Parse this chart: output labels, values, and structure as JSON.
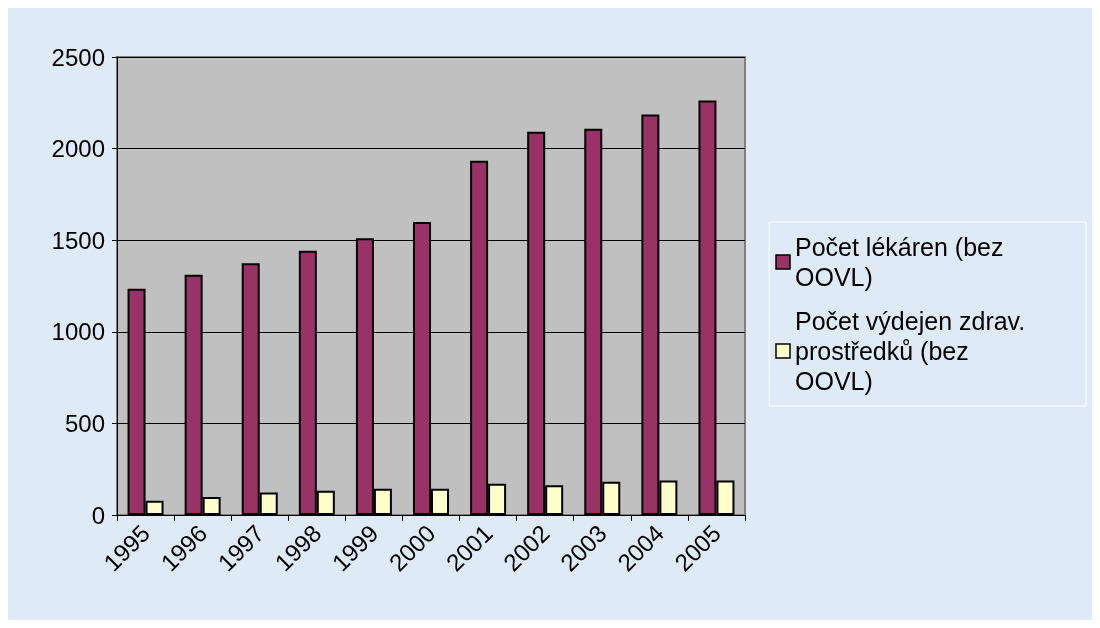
{
  "chart_data": {
    "type": "bar",
    "categories": [
      "1995",
      "1996",
      "1997",
      "1998",
      "1999",
      "2000",
      "2001",
      "2002",
      "2003",
      "2004",
      "2005"
    ],
    "series": [
      {
        "name": "Počet lékáren (bez OOVL)",
        "color": "#993366",
        "values": [
          1235,
          1312,
          1374,
          1442,
          1510,
          1599,
          1933,
          2092,
          2108,
          2186,
          2263
        ]
      },
      {
        "name": "Počet výdejen zdrav. prostředků (bez OOVL)",
        "color": "#ffffcc",
        "values": [
          78,
          98,
          123,
          132,
          143,
          143,
          171,
          162,
          182,
          189,
          189
        ]
      }
    ],
    "ylim": [
      0,
      2500
    ],
    "yticks": [
      0,
      500,
      1000,
      1500,
      2000,
      2500
    ],
    "grid": "y",
    "legend": "right"
  }
}
